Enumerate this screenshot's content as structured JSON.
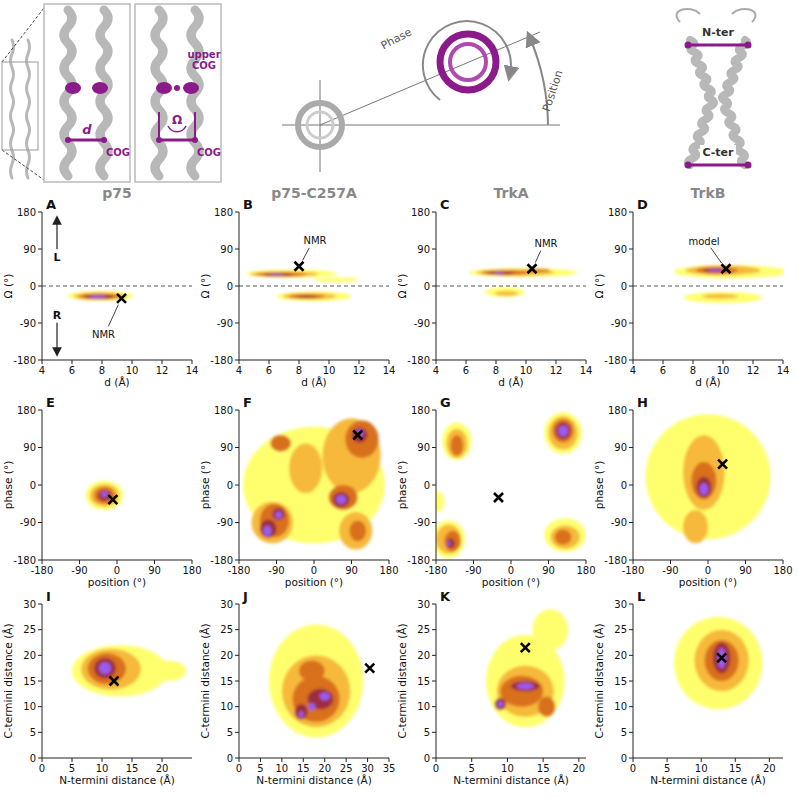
{
  "diagram": {
    "labels": {
      "d": "d",
      "cog": "COG",
      "omega": "Ω",
      "upper_cog": "upper COG",
      "cog2": "COG",
      "phase": "Phase",
      "position": "Position",
      "nter": "N-ter",
      "cter": "C-ter"
    }
  },
  "column_titles": [
    "p75",
    "p75-C257A",
    "TrkA",
    "TrkB"
  ],
  "chart_data": [
    {
      "type": "density",
      "panel_label": "A",
      "xlabel": "d (Å)",
      "ylabel": "Ω (°)",
      "xlim": [
        4,
        14
      ],
      "ylim": [
        -180,
        180
      ],
      "xticks": [
        4,
        6,
        8,
        10,
        12,
        14
      ],
      "yticks": [
        -180,
        -90,
        0,
        90,
        180
      ],
      "hline": 0,
      "regions": [
        {
          "x": 7.9,
          "y": -24,
          "rx": 2.2,
          "ry": 12,
          "level": 1
        },
        {
          "x": 7.9,
          "y": -25,
          "rx": 1.8,
          "ry": 9,
          "level": 2
        },
        {
          "x": 7.8,
          "y": -25,
          "rx": 1.4,
          "ry": 7,
          "level": 3
        },
        {
          "x": 7.8,
          "y": -26,
          "rx": 1,
          "ry": 5,
          "level": 4
        },
        {
          "x": 7.7,
          "y": -26,
          "rx": 0.6,
          "ry": 3.5,
          "level": 5
        }
      ],
      "marker_point": {
        "x": 9.3,
        "y": -30,
        "label": "NMR"
      },
      "annotations": [
        {
          "text": "L",
          "x": 5,
          "y": 70
        },
        {
          "text": "R",
          "x": 5,
          "y": -70
        }
      ]
    },
    {
      "type": "density",
      "panel_label": "B",
      "xlabel": "d (Å)",
      "ylabel": "Ω (°)",
      "xlim": [
        4,
        14
      ],
      "ylim": [
        -180,
        180
      ],
      "xticks": [
        4,
        6,
        8,
        10,
        12,
        14
      ],
      "yticks": [
        -180,
        -90,
        0,
        90,
        180
      ],
      "hline": 0,
      "regions": [
        {
          "x": 7.5,
          "y": 30,
          "rx": 3,
          "ry": 10,
          "level": 1
        },
        {
          "x": 10.5,
          "y": 15,
          "rx": 1.5,
          "ry": 6,
          "level": 1
        },
        {
          "x": 9,
          "y": -25,
          "rx": 2.5,
          "ry": 12,
          "level": 1
        },
        {
          "x": 7,
          "y": 29,
          "rx": 2.3,
          "ry": 7,
          "level": 2
        },
        {
          "x": 8.7,
          "y": -25,
          "rx": 1.8,
          "ry": 8,
          "level": 2
        },
        {
          "x": 6.8,
          "y": 28,
          "rx": 1.7,
          "ry": 5,
          "level": 3
        },
        {
          "x": 8.5,
          "y": -25,
          "rx": 1.2,
          "ry": 5,
          "level": 3
        },
        {
          "x": 6.6,
          "y": 28,
          "rx": 1,
          "ry": 3.5,
          "level": 4
        },
        {
          "x": 8.5,
          "y": -26,
          "rx": 0.7,
          "ry": 3,
          "level": 4
        },
        {
          "x": 6.5,
          "y": 28,
          "rx": 0.5,
          "ry": 2,
          "level": 5
        }
      ],
      "marker_point": {
        "x": 8,
        "y": 48,
        "label": "NMR"
      }
    },
    {
      "type": "density",
      "panel_label": "C",
      "xlabel": "d (Å)",
      "ylabel": "Ω (°)",
      "xlim": [
        4,
        14
      ],
      "ylim": [
        -180,
        180
      ],
      "xticks": [
        4,
        6,
        8,
        10,
        12,
        14
      ],
      "yticks": [
        -180,
        -90,
        0,
        90,
        180
      ],
      "hline": 0,
      "regions": [
        {
          "x": 9.8,
          "y": 33,
          "rx": 3.6,
          "ry": 11,
          "level": 1
        },
        {
          "x": 8.6,
          "y": -15,
          "rx": 1.3,
          "ry": 12,
          "level": 1
        },
        {
          "x": 9.3,
          "y": 33,
          "rx": 2.6,
          "ry": 8,
          "level": 2
        },
        {
          "x": 8.7,
          "y": -18,
          "rx": 0.8,
          "ry": 6,
          "level": 2
        },
        {
          "x": 8.6,
          "y": 32,
          "rx": 1.6,
          "ry": 6,
          "level": 3
        },
        {
          "x": 10.8,
          "y": 38,
          "rx": 0.8,
          "ry": 4,
          "level": 3
        },
        {
          "x": 8.3,
          "y": 32,
          "rx": 0.9,
          "ry": 4,
          "level": 4
        },
        {
          "x": 8.2,
          "y": 32,
          "rx": 0.4,
          "ry": 2,
          "level": 5
        }
      ],
      "marker_point": {
        "x": 10.4,
        "y": 42,
        "label": "NMR"
      }
    },
    {
      "type": "density",
      "panel_label": "D",
      "xlabel": "d (Å)",
      "ylabel": "Ω (°)",
      "xlim": [
        4,
        14
      ],
      "ylim": [
        -180,
        180
      ],
      "xticks": [
        4,
        6,
        8,
        10,
        12,
        14
      ],
      "yticks": [
        -180,
        -90,
        0,
        90,
        180
      ],
      "hline": 0,
      "regions": [
        {
          "x": 10.5,
          "y": 35,
          "rx": 3.8,
          "ry": 16,
          "level": 1
        },
        {
          "x": 10,
          "y": -28,
          "rx": 2.6,
          "ry": 14,
          "level": 1
        },
        {
          "x": 10,
          "y": 38,
          "rx": 2.5,
          "ry": 12,
          "level": 2
        },
        {
          "x": 9.8,
          "y": -25,
          "rx": 1.2,
          "ry": 6,
          "level": 2
        },
        {
          "x": 9.6,
          "y": 38,
          "rx": 1.4,
          "ry": 8,
          "level": 3
        },
        {
          "x": 9.5,
          "y": 38,
          "rx": 0.8,
          "ry": 5,
          "level": 4
        },
        {
          "x": 9.5,
          "y": 38,
          "rx": 0.5,
          "ry": 3,
          "level": 5
        }
      ],
      "marker_point": {
        "x": 10.2,
        "y": 42,
        "label": "model"
      }
    },
    {
      "type": "density",
      "panel_label": "E",
      "xlabel": "position (°)",
      "ylabel": "phase (°)",
      "xlim": [
        -180,
        180
      ],
      "ylim": [
        -180,
        180
      ],
      "xticks": [
        -180,
        -90,
        0,
        90,
        180
      ],
      "yticks": [
        -180,
        -90,
        0,
        90,
        180
      ],
      "regions": [
        {
          "x": -30,
          "y": -25,
          "rx": 45,
          "ry": 35,
          "level": 1
        },
        {
          "x": -30,
          "y": -25,
          "rx": 35,
          "ry": 27,
          "level": 2
        },
        {
          "x": -30,
          "y": -25,
          "rx": 25,
          "ry": 20,
          "level": 3
        },
        {
          "x": -30,
          "y": -25,
          "rx": 15,
          "ry": 13,
          "level": 4
        },
        {
          "x": -30,
          "y": -22,
          "rx": 8,
          "ry": 7,
          "level": 5
        }
      ],
      "marker_point": {
        "x": -10,
        "y": -35
      }
    },
    {
      "type": "density",
      "panel_label": "F",
      "xlabel": "position (°)",
      "ylabel": "phase (°)",
      "xlim": [
        -180,
        180
      ],
      "ylim": [
        -180,
        180
      ],
      "xticks": [
        -180,
        -90,
        0,
        90,
        180
      ],
      "yticks": [
        -180,
        -90,
        0,
        90,
        180
      ],
      "regions": [
        {
          "x": 0,
          "y": 0,
          "rx": 170,
          "ry": 140,
          "level": 1
        },
        {
          "x": -100,
          "y": -90,
          "rx": 50,
          "ry": 50,
          "level": 2
        },
        {
          "x": 90,
          "y": 70,
          "rx": 70,
          "ry": 90,
          "level": 2
        },
        {
          "x": -20,
          "y": 40,
          "rx": 40,
          "ry": 60,
          "level": 2
        },
        {
          "x": 100,
          "y": -110,
          "rx": 40,
          "ry": 45,
          "level": 2
        },
        {
          "x": -95,
          "y": -85,
          "rx": 35,
          "ry": 40,
          "level": 3
        },
        {
          "x": 70,
          "y": -30,
          "rx": 35,
          "ry": 30,
          "level": 3
        },
        {
          "x": 115,
          "y": 110,
          "rx": 40,
          "ry": 45,
          "level": 3
        },
        {
          "x": -80,
          "y": 100,
          "rx": 25,
          "ry": 20,
          "level": 3
        },
        {
          "x": 105,
          "y": -110,
          "rx": 20,
          "ry": 25,
          "level": 3
        },
        {
          "x": -110,
          "y": -105,
          "rx": 20,
          "ry": 22,
          "level": 4
        },
        {
          "x": -85,
          "y": -70,
          "rx": 15,
          "ry": 15,
          "level": 4
        },
        {
          "x": 65,
          "y": -35,
          "rx": 20,
          "ry": 18,
          "level": 4
        },
        {
          "x": 110,
          "y": 120,
          "rx": 18,
          "ry": 18,
          "level": 4
        },
        {
          "x": -112,
          "y": -110,
          "rx": 10,
          "ry": 13,
          "level": 5
        },
        {
          "x": -85,
          "y": -72,
          "rx": 8,
          "ry": 9,
          "level": 5
        },
        {
          "x": 65,
          "y": -35,
          "rx": 12,
          "ry": 11,
          "level": 5
        },
        {
          "x": 110,
          "y": 125,
          "rx": 8,
          "ry": 9,
          "level": 5
        }
      ],
      "marker_point": {
        "x": 105,
        "y": 120
      }
    },
    {
      "type": "density",
      "panel_label": "G",
      "xlabel": "position (°)",
      "ylabel": "phase (°)",
      "xlim": [
        -180,
        180
      ],
      "ylim": [
        -180,
        180
      ],
      "xticks": [
        -180,
        -90,
        0,
        90,
        180
      ],
      "yticks": [
        -180,
        -90,
        0,
        90,
        180
      ],
      "regions": [
        {
          "x": -150,
          "y": -130,
          "rx": 40,
          "ry": 45,
          "level": 1
        },
        {
          "x": -130,
          "y": 105,
          "rx": 35,
          "ry": 45,
          "level": 1
        },
        {
          "x": 125,
          "y": 125,
          "rx": 45,
          "ry": 50,
          "level": 1
        },
        {
          "x": 130,
          "y": -120,
          "rx": 50,
          "ry": 40,
          "level": 1
        },
        {
          "x": -175,
          "y": -40,
          "rx": 15,
          "ry": 25,
          "level": 1
        },
        {
          "x": -150,
          "y": -130,
          "rx": 30,
          "ry": 35,
          "level": 2
        },
        {
          "x": -130,
          "y": 100,
          "rx": 25,
          "ry": 35,
          "level": 2
        },
        {
          "x": 125,
          "y": 125,
          "rx": 35,
          "ry": 40,
          "level": 2
        },
        {
          "x": 130,
          "y": -125,
          "rx": 35,
          "ry": 28,
          "level": 2
        },
        {
          "x": -140,
          "y": -135,
          "rx": 20,
          "ry": 25,
          "level": 3
        },
        {
          "x": -130,
          "y": 95,
          "rx": 15,
          "ry": 25,
          "level": 3
        },
        {
          "x": 125,
          "y": 130,
          "rx": 25,
          "ry": 28,
          "level": 3
        },
        {
          "x": 125,
          "y": -125,
          "rx": 20,
          "ry": 18,
          "level": 3
        },
        {
          "x": -145,
          "y": -140,
          "rx": 10,
          "ry": 12,
          "level": 4
        },
        {
          "x": 125,
          "y": 130,
          "rx": 18,
          "ry": 20,
          "level": 4
        },
        {
          "x": -150,
          "y": -140,
          "rx": 5,
          "ry": 5,
          "level": 5
        },
        {
          "x": 125,
          "y": 130,
          "rx": 12,
          "ry": 13,
          "level": 5
        }
      ],
      "marker_point": {
        "x": -30,
        "y": -30
      }
    },
    {
      "type": "density",
      "panel_label": "H",
      "xlabel": "position (°)",
      "ylabel": "phase (°)",
      "xlim": [
        -180,
        180
      ],
      "ylim": [
        -180,
        180
      ],
      "xticks": [
        -180,
        -90,
        0,
        90,
        180
      ],
      "yticks": [
        -180,
        -90,
        0,
        90,
        180
      ],
      "regions": [
        {
          "x": 0,
          "y": 20,
          "rx": 150,
          "ry": 150,
          "level": 1
        },
        {
          "x": -10,
          "y": 30,
          "rx": 50,
          "ry": 90,
          "level": 2
        },
        {
          "x": -30,
          "y": -100,
          "rx": 30,
          "ry": 40,
          "level": 2
        },
        {
          "x": -10,
          "y": 10,
          "rx": 30,
          "ry": 45,
          "level": 3
        },
        {
          "x": -10,
          "y": -5,
          "rx": 18,
          "ry": 25,
          "level": 4
        },
        {
          "x": -10,
          "y": -10,
          "rx": 10,
          "ry": 15,
          "level": 5
        }
      ],
      "marker_point": {
        "x": 35,
        "y": 50
      }
    },
    {
      "type": "density",
      "panel_label": "I",
      "xlabel": "N-termini distance (Å)",
      "ylabel": "C-termini distance (Å)",
      "xlim": [
        0,
        25
      ],
      "ylim": [
        0,
        30
      ],
      "xticks": [
        0,
        5,
        10,
        15,
        20
      ],
      "yticks": [
        0,
        5,
        10,
        15,
        20,
        25,
        30
      ],
      "regions": [
        {
          "x": 13,
          "y": 17,
          "rx": 8,
          "ry": 5,
          "level": 1
        },
        {
          "x": 21,
          "y": 17,
          "rx": 3,
          "ry": 2,
          "level": 1
        },
        {
          "x": 11.5,
          "y": 17.3,
          "rx": 5,
          "ry": 4,
          "level": 2
        },
        {
          "x": 10.8,
          "y": 17.4,
          "rx": 3.2,
          "ry": 3,
          "level": 3
        },
        {
          "x": 10.5,
          "y": 17.5,
          "rx": 1.8,
          "ry": 2,
          "level": 4
        },
        {
          "x": 10.5,
          "y": 17.5,
          "rx": 1,
          "ry": 1.2,
          "level": 5
        }
      ],
      "marker_point": {
        "x": 12,
        "y": 15
      }
    },
    {
      "type": "density",
      "panel_label": "J",
      "xlabel": "N-termini distance (Å)",
      "ylabel": "C-termini distance (Å)",
      "xlim": [
        0,
        35
      ],
      "ylim": [
        0,
        30
      ],
      "xticks": [
        0,
        5,
        10,
        15,
        20,
        25,
        30,
        35
      ],
      "yticks": [
        0,
        5,
        10,
        15,
        20,
        25,
        30
      ],
      "regions": [
        {
          "x": 18,
          "y": 15,
          "rx": 11,
          "ry": 11,
          "level": 1
        },
        {
          "x": 18,
          "y": 13,
          "rx": 8,
          "ry": 7,
          "level": 2
        },
        {
          "x": 18,
          "y": 11.5,
          "rx": 5.5,
          "ry": 4.5,
          "level": 3
        },
        {
          "x": 17,
          "y": 17,
          "rx": 3,
          "ry": 2,
          "level": 3
        },
        {
          "x": 19,
          "y": 11.5,
          "rx": 3,
          "ry": 2,
          "level": 4
        },
        {
          "x": 14.5,
          "y": 9,
          "rx": 1.5,
          "ry": 1.5,
          "level": 4
        },
        {
          "x": 20,
          "y": 12,
          "rx": 1.2,
          "ry": 0.8,
          "level": 5
        },
        {
          "x": 14.5,
          "y": 8.5,
          "rx": 0.6,
          "ry": 0.6,
          "level": 5
        },
        {
          "x": 17,
          "y": 10,
          "rx": 0.8,
          "ry": 0.7,
          "level": 5
        }
      ],
      "marker_point": {
        "x": 30.5,
        "y": 17.5
      }
    },
    {
      "type": "density",
      "panel_label": "K",
      "xlabel": "N-termini distance (Å)",
      "ylabel": "C-termini distance (Å)",
      "xlim": [
        0,
        21
      ],
      "ylim": [
        0,
        30
      ],
      "xticks": [
        0,
        5,
        10,
        15,
        20
      ],
      "yticks": [
        0,
        5,
        10,
        15,
        20,
        25,
        30
      ],
      "regions": [
        {
          "x": 12.5,
          "y": 15,
          "rx": 5.5,
          "ry": 9,
          "level": 1
        },
        {
          "x": 16,
          "y": 25,
          "rx": 2.5,
          "ry": 4,
          "level": 1
        },
        {
          "x": 12.5,
          "y": 13,
          "rx": 4,
          "ry": 5,
          "level": 2
        },
        {
          "x": 12,
          "y": 13,
          "rx": 3,
          "ry": 3,
          "level": 3
        },
        {
          "x": 15.5,
          "y": 10,
          "rx": 1.2,
          "ry": 2,
          "level": 3
        },
        {
          "x": 12.5,
          "y": 14,
          "rx": 2,
          "ry": 1,
          "level": 4
        },
        {
          "x": 9,
          "y": 10.5,
          "rx": 0.8,
          "ry": 1.2,
          "level": 4
        },
        {
          "x": 12.5,
          "y": 14,
          "rx": 1.2,
          "ry": 0.6,
          "level": 5
        },
        {
          "x": 9,
          "y": 10.5,
          "rx": 0.4,
          "ry": 0.6,
          "level": 5
        }
      ],
      "marker_point": {
        "x": 12.5,
        "y": 21.5
      }
    },
    {
      "type": "density",
      "panel_label": "L",
      "xlabel": "N-termini distance (Å)",
      "ylabel": "C-termini distance (Å)",
      "xlim": [
        0,
        22
      ],
      "ylim": [
        0,
        30
      ],
      "xticks": [
        0,
        5,
        10,
        15,
        20
      ],
      "yticks": [
        0,
        5,
        10,
        15,
        20,
        25,
        30
      ],
      "regions": [
        {
          "x": 12.5,
          "y": 18.5,
          "rx": 6.5,
          "ry": 9,
          "level": 1
        },
        {
          "x": 13,
          "y": 19,
          "rx": 4,
          "ry": 6,
          "level": 2
        },
        {
          "x": 13,
          "y": 19,
          "rx": 2.5,
          "ry": 4,
          "level": 3
        },
        {
          "x": 13,
          "y": 19.5,
          "rx": 1.3,
          "ry": 3,
          "level": 4
        },
        {
          "x": 13,
          "y": 19.5,
          "rx": 0.6,
          "ry": 2,
          "level": 5
        }
      ],
      "marker_point": {
        "x": 13,
        "y": 19.5
      }
    }
  ]
}
